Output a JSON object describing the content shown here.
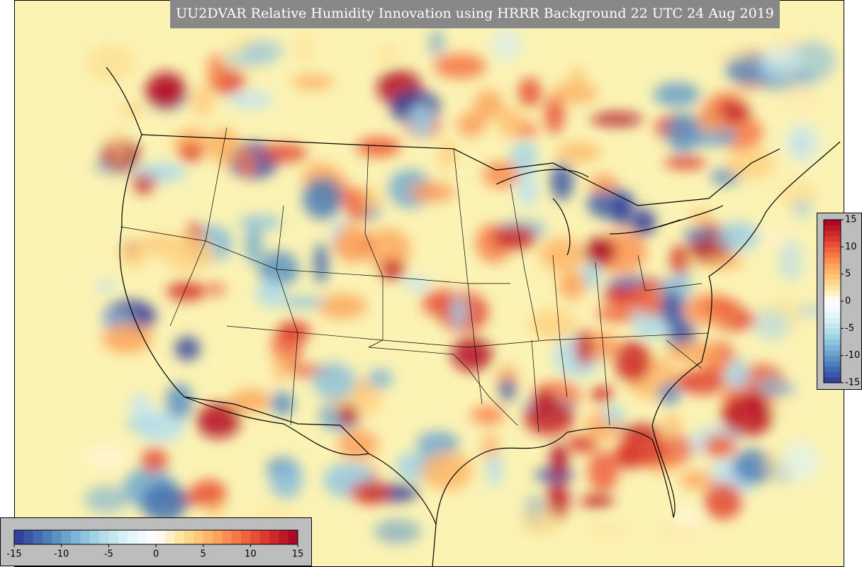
{
  "title": "UU2DVAR Relative Humidity Innovation using HRRR Background 22 UTC 24 Aug 2019",
  "colorbar_bottom": {
    "lim": [
      -15,
      15
    ],
    "ticks": [
      -15,
      -10,
      -5,
      0,
      5,
      10,
      15
    ]
  },
  "colorbar_right": {
    "lim": [
      -15,
      15
    ],
    "ticks": [
      15,
      10,
      5,
      0,
      -5,
      -10,
      -15
    ]
  }
}
